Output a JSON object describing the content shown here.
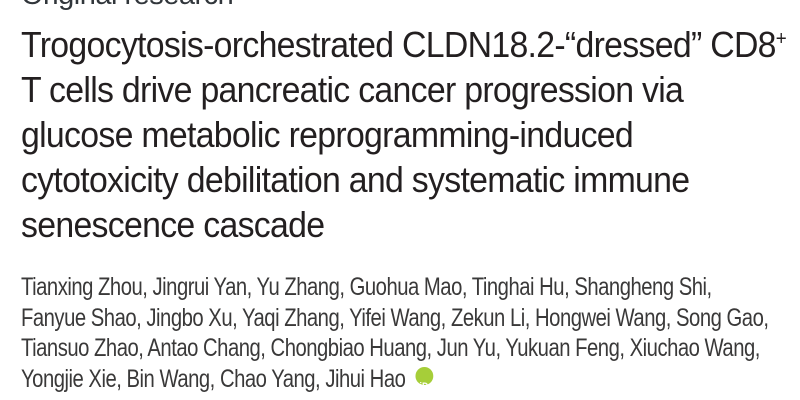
{
  "kicker": {
    "label": "Original research"
  },
  "title": {
    "lines": [
      "Trogocytosis-orchestrated CLDN18.2-“dressed” CD8",
      "T cells drive pancreatic cancer progression via",
      "glucose metabolic reprogramming-induced",
      "cytotoxicity debilitation and systematic immune",
      "senescence cascade"
    ],
    "superscript": "+"
  },
  "authors": {
    "lines": [
      "Tianxing Zhou, Jingrui Yan, Yu Zhang, Guohua Mao, Tinghai Hu, Shangheng Shi,",
      "Fanyue Shao, Jingbo Xu, Yaqi Zhang, Yifei Wang, Zekun Li, Hongwei Wang, Song Gao,",
      "Tiansuo Zhao, Antao Chang, Chongbiao Huang, Jun Yu, Yukuan Feng, Xiuchao Wang,",
      "Yongjie Xie, Bin Wang, Chao Yang, Jihui Hao"
    ]
  },
  "orcid": {
    "label": "iD",
    "color": "#a6ce39"
  },
  "colors": {
    "title_text": "#231f20",
    "author_text": "#3a3939",
    "background": "#ffffff"
  }
}
